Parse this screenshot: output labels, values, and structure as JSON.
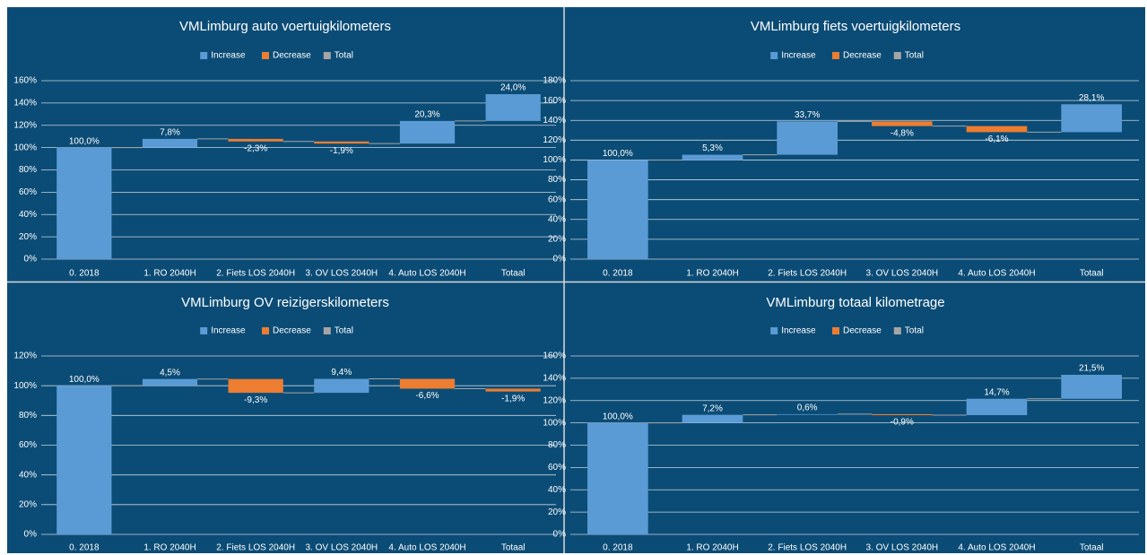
{
  "chart_data": [
    {
      "type": "waterfall",
      "title": "VMLimburg auto voertuigkilometers",
      "legend": [
        {
          "name": "Increase",
          "color": "#5b9bd5"
        },
        {
          "name": "Decrease",
          "color": "#ed7d31"
        },
        {
          "name": "Total",
          "color": "#a5a5a5"
        }
      ],
      "categories": [
        "0. 2018",
        "1. RO 2040H",
        "2. Fiets LOS 2040H",
        "3. OV LOS 2040H",
        "4. Auto LOS 2040H",
        "Totaal"
      ],
      "values": [
        100,
        7.8,
        -2.3,
        -1.9,
        20.3,
        24.0
      ],
      "value_labels": [
        "100,0%",
        "7,8%",
        "-2,3%",
        "-1,9%",
        "20,3%",
        "24,0%"
      ],
      "ylim": [
        0,
        160
      ],
      "yticks": [
        {
          "value": 0,
          "label": "0%"
        },
        {
          "value": 20,
          "label": "20%"
        },
        {
          "value": 40,
          "label": "40%"
        },
        {
          "value": 60,
          "label": "60%"
        },
        {
          "value": 80,
          "label": "80%"
        },
        {
          "value": 100,
          "label": "100%"
        },
        {
          "value": 120,
          "label": "120%"
        },
        {
          "value": 140,
          "label": "140%"
        },
        {
          "value": 160,
          "label": "160%"
        }
      ],
      "grid": true
    },
    {
      "type": "waterfall",
      "title": "VMLimburg fiets voertuigkilometers",
      "legend": [
        {
          "name": "Increase",
          "color": "#5b9bd5"
        },
        {
          "name": "Decrease",
          "color": "#ed7d31"
        },
        {
          "name": "Total",
          "color": "#a5a5a5"
        }
      ],
      "categories": [
        "0. 2018",
        "1. RO 2040H",
        "2. Fiets LOS 2040H",
        "3. OV LOS 2040H",
        "4. Auto LOS 2040H",
        "Totaal"
      ],
      "values": [
        100,
        5.3,
        33.7,
        -4.8,
        -6.1,
        28.1
      ],
      "value_labels": [
        "100,0%",
        "5,3%",
        "33,7%",
        "-4,8%",
        "-6,1%",
        "28,1%"
      ],
      "ylim": [
        0,
        180
      ],
      "yticks": [
        {
          "value": 0,
          "label": "0%"
        },
        {
          "value": 20,
          "label": "20%"
        },
        {
          "value": 40,
          "label": "40%"
        },
        {
          "value": 60,
          "label": "60%"
        },
        {
          "value": 80,
          "label": "80%"
        },
        {
          "value": 100,
          "label": "100%"
        },
        {
          "value": 120,
          "label": "120%"
        },
        {
          "value": 140,
          "label": "140%"
        },
        {
          "value": 160,
          "label": "160%"
        },
        {
          "value": 180,
          "label": "180%"
        }
      ],
      "grid": true
    },
    {
      "type": "waterfall",
      "title": "VMLimburg OV reizigerskilometers",
      "legend": [
        {
          "name": "Increase",
          "color": "#5b9bd5"
        },
        {
          "name": "Decrease",
          "color": "#ed7d31"
        },
        {
          "name": "Total",
          "color": "#a5a5a5"
        }
      ],
      "categories": [
        "0. 2018",
        "1. RO 2040H",
        "2. Fiets LOS 2040H",
        "3. OV LOS 2040H",
        "4. Auto LOS 2040H",
        "Totaal"
      ],
      "values": [
        100,
        4.5,
        -9.3,
        9.4,
        -6.6,
        -1.9
      ],
      "value_labels": [
        "100,0%",
        "4,5%",
        "-9,3%",
        "9,4%",
        "-6,6%",
        "-1,9%"
      ],
      "ylim": [
        0,
        120
      ],
      "yticks": [
        {
          "value": 0,
          "label": "0%"
        },
        {
          "value": 20,
          "label": "20%"
        },
        {
          "value": 40,
          "label": "40%"
        },
        {
          "value": 60,
          "label": "60%"
        },
        {
          "value": 80,
          "label": "80%"
        },
        {
          "value": 100,
          "label": "100%"
        },
        {
          "value": 120,
          "label": "120%"
        }
      ],
      "grid": true
    },
    {
      "type": "waterfall",
      "title": "VMLimburg totaal kilometrage",
      "legend": [
        {
          "name": "Increase",
          "color": "#5b9bd5"
        },
        {
          "name": "Decrease",
          "color": "#ed7d31"
        },
        {
          "name": "Total",
          "color": "#a5a5a5"
        }
      ],
      "categories": [
        "0. 2018",
        "1. RO 2040H",
        "2. Fiets LOS 2040H",
        "3. OV LOS 2040H",
        "4. Auto LOS 2040H",
        "Totaal"
      ],
      "values": [
        100,
        7.2,
        0.6,
        -0.9,
        14.7,
        21.5
      ],
      "value_labels": [
        "100,0%",
        "7,2%",
        "0,6%",
        "-0,9%",
        "14,7%",
        "21,5%"
      ],
      "ylim": [
        0,
        160
      ],
      "yticks": [
        {
          "value": 0,
          "label": "0%"
        },
        {
          "value": 20,
          "label": "20%"
        },
        {
          "value": 40,
          "label": "40%"
        },
        {
          "value": 60,
          "label": "60%"
        },
        {
          "value": 80,
          "label": "80%"
        },
        {
          "value": 100,
          "label": "100%"
        },
        {
          "value": 120,
          "label": "120%"
        },
        {
          "value": 140,
          "label": "140%"
        },
        {
          "value": 160,
          "label": "160%"
        }
      ],
      "grid": true
    }
  ]
}
